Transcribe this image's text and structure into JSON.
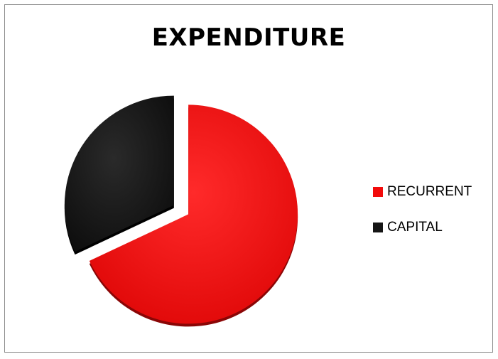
{
  "chart_data": {
    "type": "pie",
    "title": "EXPENDITURE",
    "categories": [
      "RECURRENT",
      "CAPITAL"
    ],
    "values": [
      68,
      32
    ],
    "colors": [
      "#f20b0b",
      "#151515"
    ],
    "exploded": true,
    "legend_placement": "right"
  }
}
